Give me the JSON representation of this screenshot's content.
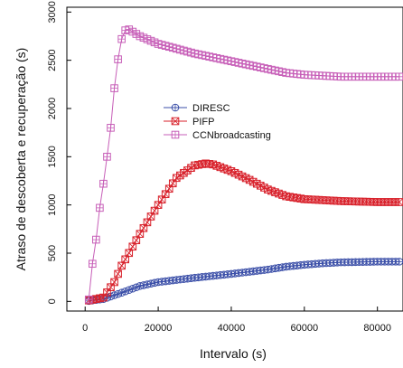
{
  "chart_data": {
    "type": "line",
    "xlabel": "Intervalo (s)",
    "ylabel": "Atraso de descoberta e recuperação (s)",
    "xlim": [
      -5000,
      87000
    ],
    "ylim": [
      -100,
      3050
    ],
    "xticks": [
      0,
      20000,
      40000,
      60000,
      80000
    ],
    "xtick_labels": [
      "0",
      "20000",
      "40000",
      "60000",
      "80000"
    ],
    "yticks": [
      0,
      500,
      1000,
      1500,
      2000,
      2500,
      3000
    ],
    "ytick_labels": [
      "0",
      "500",
      "1000",
      "1500",
      "2000",
      "2500",
      "3000"
    ],
    "grid": false,
    "legend_position": "center-left",
    "series": [
      {
        "name": "DIRESC",
        "color": "#3b4fa8",
        "marker": "circle-plus",
        "x": [
          1000,
          5000,
          10000,
          15000,
          20000,
          30000,
          40000,
          50000,
          55000,
          60000,
          65000,
          70000,
          80000,
          86000
        ],
        "y": [
          5,
          25,
          90,
          160,
          200,
          245,
          285,
          330,
          360,
          380,
          395,
          405,
          412,
          412
        ]
      },
      {
        "name": "PIFP",
        "color": "#d8212b",
        "marker": "square-x",
        "x": [
          1000,
          5000,
          8000,
          10000,
          15000,
          20000,
          25000,
          30000,
          33000,
          35000,
          40000,
          45000,
          50000,
          55000,
          60000,
          70000,
          80000,
          86000
        ],
        "y": [
          10,
          40,
          200,
          370,
          700,
          1000,
          1280,
          1410,
          1430,
          1420,
          1350,
          1260,
          1160,
          1090,
          1060,
          1040,
          1030,
          1030
        ]
      },
      {
        "name": "CCNbroadcasting",
        "color": "#c75fb8",
        "marker": "square-plus",
        "x": [
          1000,
          2000,
          3000,
          4000,
          5000,
          6000,
          7000,
          8000,
          9000,
          10000,
          11000,
          12000,
          15000,
          20000,
          30000,
          40000,
          50000,
          55000,
          60000,
          70000,
          80000,
          86000
        ],
        "y": [
          20,
          390,
          640,
          970,
          1220,
          1500,
          1800,
          2210,
          2510,
          2720,
          2810,
          2820,
          2750,
          2670,
          2570,
          2490,
          2410,
          2370,
          2350,
          2330,
          2330,
          2330
        ]
      }
    ]
  }
}
